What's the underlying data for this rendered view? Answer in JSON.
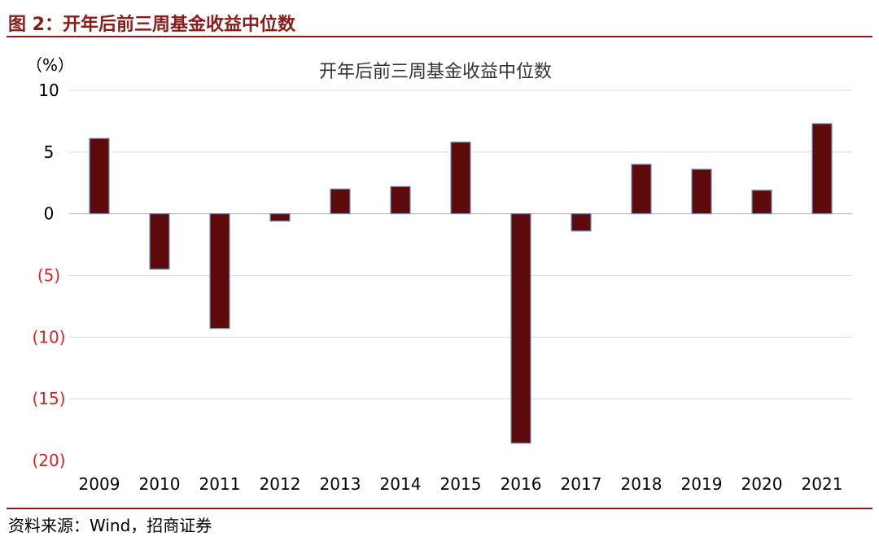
{
  "figure": {
    "label": "图 2：开年后前三周基金收益中位数",
    "source": "资料来源：Wind，招商证券",
    "unit": "（%）"
  },
  "colors": {
    "bar_fill": "#5C0A0A",
    "bar_stroke": "#6F8FC8",
    "negative_tick": "#E02020",
    "header": "#8B1A1A",
    "grid": "#D9D9D9"
  },
  "chart_data": {
    "type": "bar",
    "title": "开年后前三周基金收益中位数",
    "xlabel": "",
    "ylabel": "（%）",
    "categories": [
      "2009",
      "2010",
      "2011",
      "2012",
      "2013",
      "2014",
      "2015",
      "2016",
      "2017",
      "2018",
      "2019",
      "2020",
      "2021"
    ],
    "values": [
      6.1,
      -4.5,
      -9.3,
      -0.6,
      2.0,
      2.2,
      5.8,
      -18.6,
      -1.4,
      4.0,
      3.6,
      1.9,
      7.3
    ],
    "ylim": [
      -20,
      10
    ],
    "yticks": [
      10,
      5,
      0,
      -5,
      -10,
      -15,
      -20
    ],
    "ytick_labels": [
      "10",
      "5",
      "0",
      "(5)",
      "(10)",
      "(15)",
      "(20)"
    ],
    "grid": true,
    "legend": "none"
  }
}
